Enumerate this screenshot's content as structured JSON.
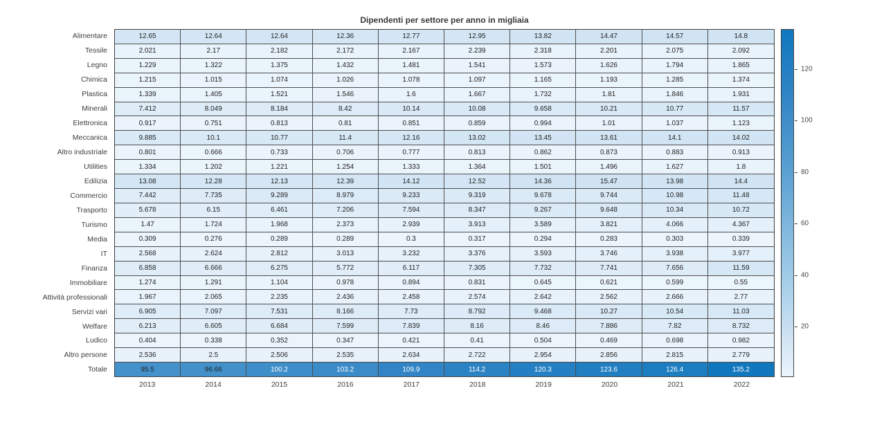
{
  "chart_data": {
    "type": "heatmap",
    "title": "Dipendenti per settore per anno in migliaia",
    "categories_x": [
      "2013",
      "2014",
      "2015",
      "2016",
      "2017",
      "2018",
      "2019",
      "2020",
      "2021",
      "2022"
    ],
    "categories_y": [
      "Alimentare",
      "Tessile",
      "Legno",
      "Chimica",
      "Plastica",
      "Minerali",
      "Elettronica",
      "Meccanica",
      "Altro industriale",
      "Utilities",
      "Edilizia",
      "Commercio",
      "Trasporto",
      "Turismo",
      "Media",
      "IT",
      "Finanza",
      "Immobiliare",
      "Attività professionali",
      "Servizi vari",
      "Welfare",
      "Ludico",
      "Altro persone",
      "Totale"
    ],
    "values": [
      [
        "12.65",
        "12.64",
        "12.64",
        "12.36",
        "12.77",
        "12.95",
        "13.82",
        "14.47",
        "14.57",
        "14.8"
      ],
      [
        "2.021",
        "2.17",
        "2.182",
        "2.172",
        "2.167",
        "2.239",
        "2.318",
        "2.201",
        "2.075",
        "2.092"
      ],
      [
        "1.229",
        "1.322",
        "1.375",
        "1.432",
        "1.481",
        "1.541",
        "1.573",
        "1.626",
        "1.794",
        "1.865"
      ],
      [
        "1.215",
        "1.015",
        "1.074",
        "1.026",
        "1.078",
        "1.097",
        "1.165",
        "1.193",
        "1.285",
        "1.374"
      ],
      [
        "1.339",
        "1.405",
        "1.521",
        "1.546",
        "1.6",
        "1.667",
        "1.732",
        "1.81",
        "1.846",
        "1.931"
      ],
      [
        "7.412",
        "8.049",
        "8.184",
        "8.42",
        "10.14",
        "10.08",
        "9.658",
        "10.21",
        "10.77",
        "11.57"
      ],
      [
        "0.917",
        "0.751",
        "0.813",
        "0.81",
        "0.851",
        "0.859",
        "0.994",
        "1.01",
        "1.037",
        "1.123"
      ],
      [
        "9.885",
        "10.1",
        "10.77",
        "11.4",
        "12.16",
        "13.02",
        "13.45",
        "13.61",
        "14.1",
        "14.02"
      ],
      [
        "0.801",
        "0.666",
        "0.733",
        "0.706",
        "0.777",
        "0.813",
        "0.862",
        "0.873",
        "0.883",
        "0.913"
      ],
      [
        "1.334",
        "1.202",
        "1.221",
        "1.254",
        "1.333",
        "1.364",
        "1.501",
        "1.496",
        "1.627",
        "1.8"
      ],
      [
        "13.08",
        "12.28",
        "12.13",
        "12.39",
        "14.12",
        "12.52",
        "14.36",
        "15.47",
        "13.98",
        "14.4"
      ],
      [
        "7.442",
        "7.735",
        "9.289",
        "8.979",
        "9.233",
        "9.319",
        "9.678",
        "9.744",
        "10.98",
        "11.48"
      ],
      [
        "5.678",
        "6.15",
        "6.461",
        "7.206",
        "7.594",
        "8.347",
        "9.267",
        "9.648",
        "10.34",
        "10.72"
      ],
      [
        "1.47",
        "1.724",
        "1.968",
        "2.373",
        "2.939",
        "3.913",
        "3.589",
        "3.821",
        "4.066",
        "4.367"
      ],
      [
        "0.309",
        "0.276",
        "0.289",
        "0.289",
        "0.3",
        "0.317",
        "0.294",
        "0.283",
        "0.303",
        "0.339"
      ],
      [
        "2.568",
        "2.624",
        "2.812",
        "3.013",
        "3.232",
        "3.376",
        "3.593",
        "3.746",
        "3.938",
        "3.977"
      ],
      [
        "6.858",
        "6.666",
        "6.275",
        "5.772",
        "6.117",
        "7.305",
        "7.732",
        "7.741",
        "7.656",
        "11.59"
      ],
      [
        "1.274",
        "1.291",
        "1.104",
        "0.978",
        "0.894",
        "0.831",
        "0.645",
        "0.621",
        "0.599",
        "0.55"
      ],
      [
        "1.967",
        "2.065",
        "2.235",
        "2.436",
        "2.458",
        "2.574",
        "2.642",
        "2.562",
        "2.666",
        "2.77"
      ],
      [
        "6.905",
        "7.097",
        "7.531",
        "8.166",
        "7.73",
        "8.792",
        "9.468",
        "10.27",
        "10.54",
        "11.03"
      ],
      [
        "6.213",
        "6.605",
        "6.684",
        "7.599",
        "7.839",
        "8.16",
        "8.46",
        "7.886",
        "7.82",
        "8.732"
      ],
      [
        "0.404",
        "0.338",
        "0.352",
        "0.347",
        "0.421",
        "0.41",
        "0.504",
        "0.469",
        "0.698",
        "0.982"
      ],
      [
        "2.536",
        "2.5",
        "2.506",
        "2.535",
        "2.634",
        "2.722",
        "2.954",
        "2.856",
        "2.815",
        "2.779"
      ],
      [
        "95.5",
        "96.66",
        "100.2",
        "103.2",
        "109.9",
        "114.2",
        "120.3",
        "123.6",
        "126.4",
        "135.2"
      ]
    ],
    "colorbar": {
      "ticks": [
        20,
        40,
        60,
        80,
        100,
        120
      ],
      "position": "right"
    },
    "color_scale": {
      "min": 0.276,
      "max": 135.2,
      "stops": [
        {
          "t": 0,
          "color": "#ecf5fc"
        },
        {
          "t": 0.1,
          "color": "#d2e5f4"
        },
        {
          "t": 0.3,
          "color": "#9ecae6"
        },
        {
          "t": 0.6,
          "color": "#58a0d2"
        },
        {
          "t": 0.8,
          "color": "#3386c6"
        },
        {
          "t": 1,
          "color": "#1178be"
        }
      ],
      "white_text_min_value": 98,
      "dark_text_color": "#1f1f1f",
      "light_text_color": "#ffffff"
    },
    "grid": true,
    "legend_position": "right-colorbar",
    "xlabel": "",
    "ylabel": ""
  }
}
